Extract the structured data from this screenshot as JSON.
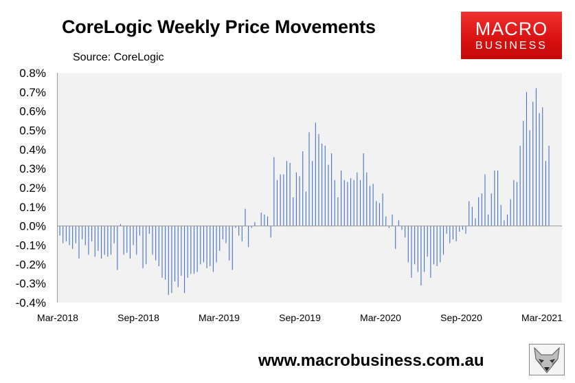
{
  "header": {
    "title": "CoreLogic Weekly Price Movements",
    "source": "Source: CoreLogic"
  },
  "logo": {
    "line1": "MACRO",
    "line2": "BUSINESS"
  },
  "footer": {
    "website": "www.macrobusiness.com.au"
  },
  "colors": {
    "bar": "#4472c4",
    "logo_red": "#e02020"
  },
  "chart_data": {
    "type": "bar",
    "title": "CoreLogic Weekly Price Movements",
    "xlabel": "",
    "ylabel": "",
    "ylim": [
      -0.4,
      0.8
    ],
    "y_ticks": [
      "0.8%",
      "0.7%",
      "0.6%",
      "0.5%",
      "0.4%",
      "0.3%",
      "0.2%",
      "0.1%",
      "0.0%",
      "-0.1%",
      "-0.2%",
      "-0.3%",
      "-0.4%"
    ],
    "x_ticks": [
      "Mar-2018",
      "Sep-2018",
      "Mar-2019",
      "Sep-2019",
      "Mar-2020",
      "Sep-2020",
      "Mar-2021"
    ],
    "grid": false,
    "legend": "none",
    "values": [
      -0.05,
      -0.09,
      -0.08,
      -0.1,
      -0.12,
      -0.09,
      -0.17,
      -0.07,
      -0.1,
      -0.15,
      -0.08,
      -0.16,
      -0.13,
      -0.17,
      -0.15,
      -0.16,
      -0.15,
      -0.09,
      -0.23,
      0.01,
      -0.15,
      -0.14,
      -0.17,
      -0.1,
      -0.15,
      -0.05,
      -0.22,
      -0.2,
      -0.04,
      -0.15,
      -0.18,
      -0.21,
      -0.27,
      -0.28,
      -0.36,
      -0.35,
      -0.29,
      -0.32,
      -0.26,
      -0.35,
      -0.27,
      -0.25,
      -0.25,
      -0.24,
      -0.2,
      -0.19,
      -0.22,
      -0.21,
      -0.24,
      -0.19,
      -0.13,
      -0.07,
      -0.09,
      -0.18,
      -0.23,
      -0.01,
      -0.05,
      -0.08,
      0.09,
      -0.11,
      -0.01,
      0.02,
      0.0,
      0.07,
      0.06,
      0.05,
      -0.06,
      0.36,
      0.24,
      0.27,
      0.27,
      0.34,
      0.33,
      0.15,
      0.28,
      0.26,
      0.39,
      0.18,
      0.49,
      0.34,
      0.54,
      0.48,
      0.43,
      0.42,
      0.32,
      0.38,
      0.24,
      0.15,
      0.29,
      0.24,
      0.23,
      0.25,
      0.24,
      0.28,
      0.24,
      0.38,
      0.28,
      0.21,
      0.22,
      0.13,
      0.12,
      0.17,
      0.05,
      -0.01,
      0.06,
      -0.12,
      0.03,
      -0.02,
      -0.06,
      -0.19,
      -0.27,
      -0.2,
      -0.24,
      -0.31,
      -0.24,
      -0.16,
      -0.27,
      -0.2,
      -0.21,
      -0.19,
      -0.15,
      -0.04,
      -0.09,
      -0.07,
      -0.08,
      -0.03,
      -0.02,
      -0.04,
      0.13,
      0.1,
      0.04,
      0.15,
      0.17,
      0.27,
      0.06,
      0.17,
      0.29,
      0.29,
      0.11,
      0.03,
      0.06,
      0.14,
      0.24,
      0.23,
      0.42,
      0.55,
      0.7,
      0.5,
      0.65,
      0.72,
      0.59,
      0.62,
      0.34,
      0.42
    ]
  }
}
